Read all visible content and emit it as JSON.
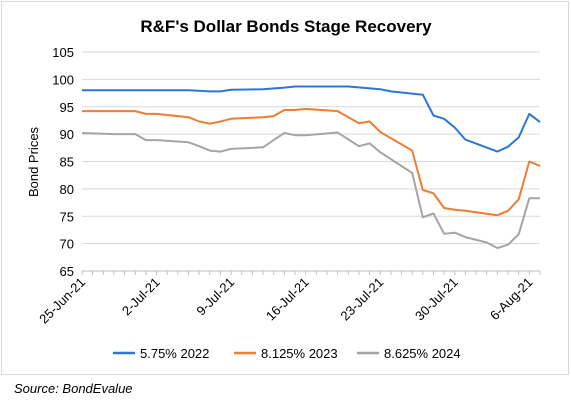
{
  "chart_data": {
    "type": "line",
    "title": "R&F's Dollar Bonds Stage Recovery",
    "ylabel": "Bond Prices",
    "xlabel": "",
    "ylim": [
      65,
      105
    ],
    "yticks": [
      65,
      70,
      75,
      80,
      85,
      90,
      95,
      100,
      105
    ],
    "xlim": [
      "2021-06-25",
      "2021-08-07"
    ],
    "xtick_labels": [
      {
        "date": "2021-06-25",
        "label": "25-Jun-21"
      },
      {
        "date": "2021-07-02",
        "label": "2-Jul-21"
      },
      {
        "date": "2021-07-09",
        "label": "9-Jul-21"
      },
      {
        "date": "2021-07-16",
        "label": "16-Jul-21"
      },
      {
        "date": "2021-07-23",
        "label": "23-Jul-21"
      },
      {
        "date": "2021-07-30",
        "label": "30-Jul-21"
      },
      {
        "date": "2021-08-06",
        "label": "6-Aug-21"
      }
    ],
    "grid": "horizontal",
    "legend_position": "bottom",
    "series": [
      {
        "name": "5.75% 2022",
        "color": "#2E75D6",
        "points": [
          [
            "2021-06-25",
            98.0
          ],
          [
            "2021-06-29",
            98.0
          ],
          [
            "2021-06-30",
            98.0
          ],
          [
            "2021-07-01",
            98.0
          ],
          [
            "2021-07-02",
            98.0
          ],
          [
            "2021-07-05",
            98.0
          ],
          [
            "2021-07-07",
            97.8
          ],
          [
            "2021-07-08",
            97.8
          ],
          [
            "2021-07-09",
            98.1
          ],
          [
            "2021-07-12",
            98.2
          ],
          [
            "2021-07-14",
            98.5
          ],
          [
            "2021-07-15",
            98.7
          ],
          [
            "2021-07-16",
            98.7
          ],
          [
            "2021-07-19",
            98.7
          ],
          [
            "2021-07-20",
            98.7
          ],
          [
            "2021-07-23",
            98.2
          ],
          [
            "2021-07-24",
            97.8
          ],
          [
            "2021-07-27",
            97.2
          ],
          [
            "2021-07-28",
            93.4
          ],
          [
            "2021-07-29",
            92.8
          ],
          [
            "2021-07-30",
            91.2
          ],
          [
            "2021-07-31",
            89.0
          ],
          [
            "2021-08-03",
            86.8
          ],
          [
            "2021-08-04",
            87.7
          ],
          [
            "2021-08-05",
            89.4
          ],
          [
            "2021-08-06",
            93.7
          ],
          [
            "2021-08-07",
            92.2
          ]
        ]
      },
      {
        "name": "8.125% 2023",
        "color": "#ED7D31",
        "points": [
          [
            "2021-06-25",
            94.2
          ],
          [
            "2021-06-29",
            94.2
          ],
          [
            "2021-06-30",
            94.2
          ],
          [
            "2021-07-01",
            93.7
          ],
          [
            "2021-07-02",
            93.7
          ],
          [
            "2021-07-05",
            93.1
          ],
          [
            "2021-07-06",
            92.3
          ],
          [
            "2021-07-07",
            91.9
          ],
          [
            "2021-07-08",
            92.3
          ],
          [
            "2021-07-09",
            92.8
          ],
          [
            "2021-07-12",
            93.1
          ],
          [
            "2021-07-13",
            93.3
          ],
          [
            "2021-07-14",
            94.4
          ],
          [
            "2021-07-15",
            94.4
          ],
          [
            "2021-07-16",
            94.6
          ],
          [
            "2021-07-19",
            94.2
          ],
          [
            "2021-07-21",
            92.0
          ],
          [
            "2021-07-22",
            92.3
          ],
          [
            "2021-07-23",
            90.4
          ],
          [
            "2021-07-26",
            87.0
          ],
          [
            "2021-07-27",
            79.8
          ],
          [
            "2021-07-28",
            79.2
          ],
          [
            "2021-07-29",
            76.5
          ],
          [
            "2021-07-30",
            76.2
          ],
          [
            "2021-07-31",
            76.0
          ],
          [
            "2021-08-03",
            75.2
          ],
          [
            "2021-08-04",
            76.0
          ],
          [
            "2021-08-05",
            78.1
          ],
          [
            "2021-08-06",
            85.0
          ],
          [
            "2021-08-07",
            84.2
          ]
        ]
      },
      {
        "name": "8.625% 2024",
        "color": "#A5A5A5",
        "points": [
          [
            "2021-06-25",
            90.2
          ],
          [
            "2021-06-28",
            90.0
          ],
          [
            "2021-06-30",
            90.0
          ],
          [
            "2021-07-01",
            88.9
          ],
          [
            "2021-07-02",
            88.9
          ],
          [
            "2021-07-05",
            88.5
          ],
          [
            "2021-07-06",
            87.8
          ],
          [
            "2021-07-07",
            87.0
          ],
          [
            "2021-07-08",
            86.8
          ],
          [
            "2021-07-09",
            87.3
          ],
          [
            "2021-07-12",
            87.6
          ],
          [
            "2021-07-13",
            88.9
          ],
          [
            "2021-07-14",
            90.2
          ],
          [
            "2021-07-15",
            89.8
          ],
          [
            "2021-07-16",
            89.8
          ],
          [
            "2021-07-19",
            90.3
          ],
          [
            "2021-07-21",
            87.8
          ],
          [
            "2021-07-22",
            88.3
          ],
          [
            "2021-07-23",
            86.7
          ],
          [
            "2021-07-26",
            82.9
          ],
          [
            "2021-07-27",
            74.8
          ],
          [
            "2021-07-28",
            75.5
          ],
          [
            "2021-07-29",
            71.8
          ],
          [
            "2021-07-30",
            72.0
          ],
          [
            "2021-07-31",
            71.2
          ],
          [
            "2021-08-02",
            70.2
          ],
          [
            "2021-08-03",
            69.2
          ],
          [
            "2021-08-04",
            69.8
          ],
          [
            "2021-08-05",
            71.7
          ],
          [
            "2021-08-06",
            78.3
          ],
          [
            "2021-08-07",
            78.3
          ]
        ]
      }
    ]
  },
  "source": "Source: BondEvalue"
}
